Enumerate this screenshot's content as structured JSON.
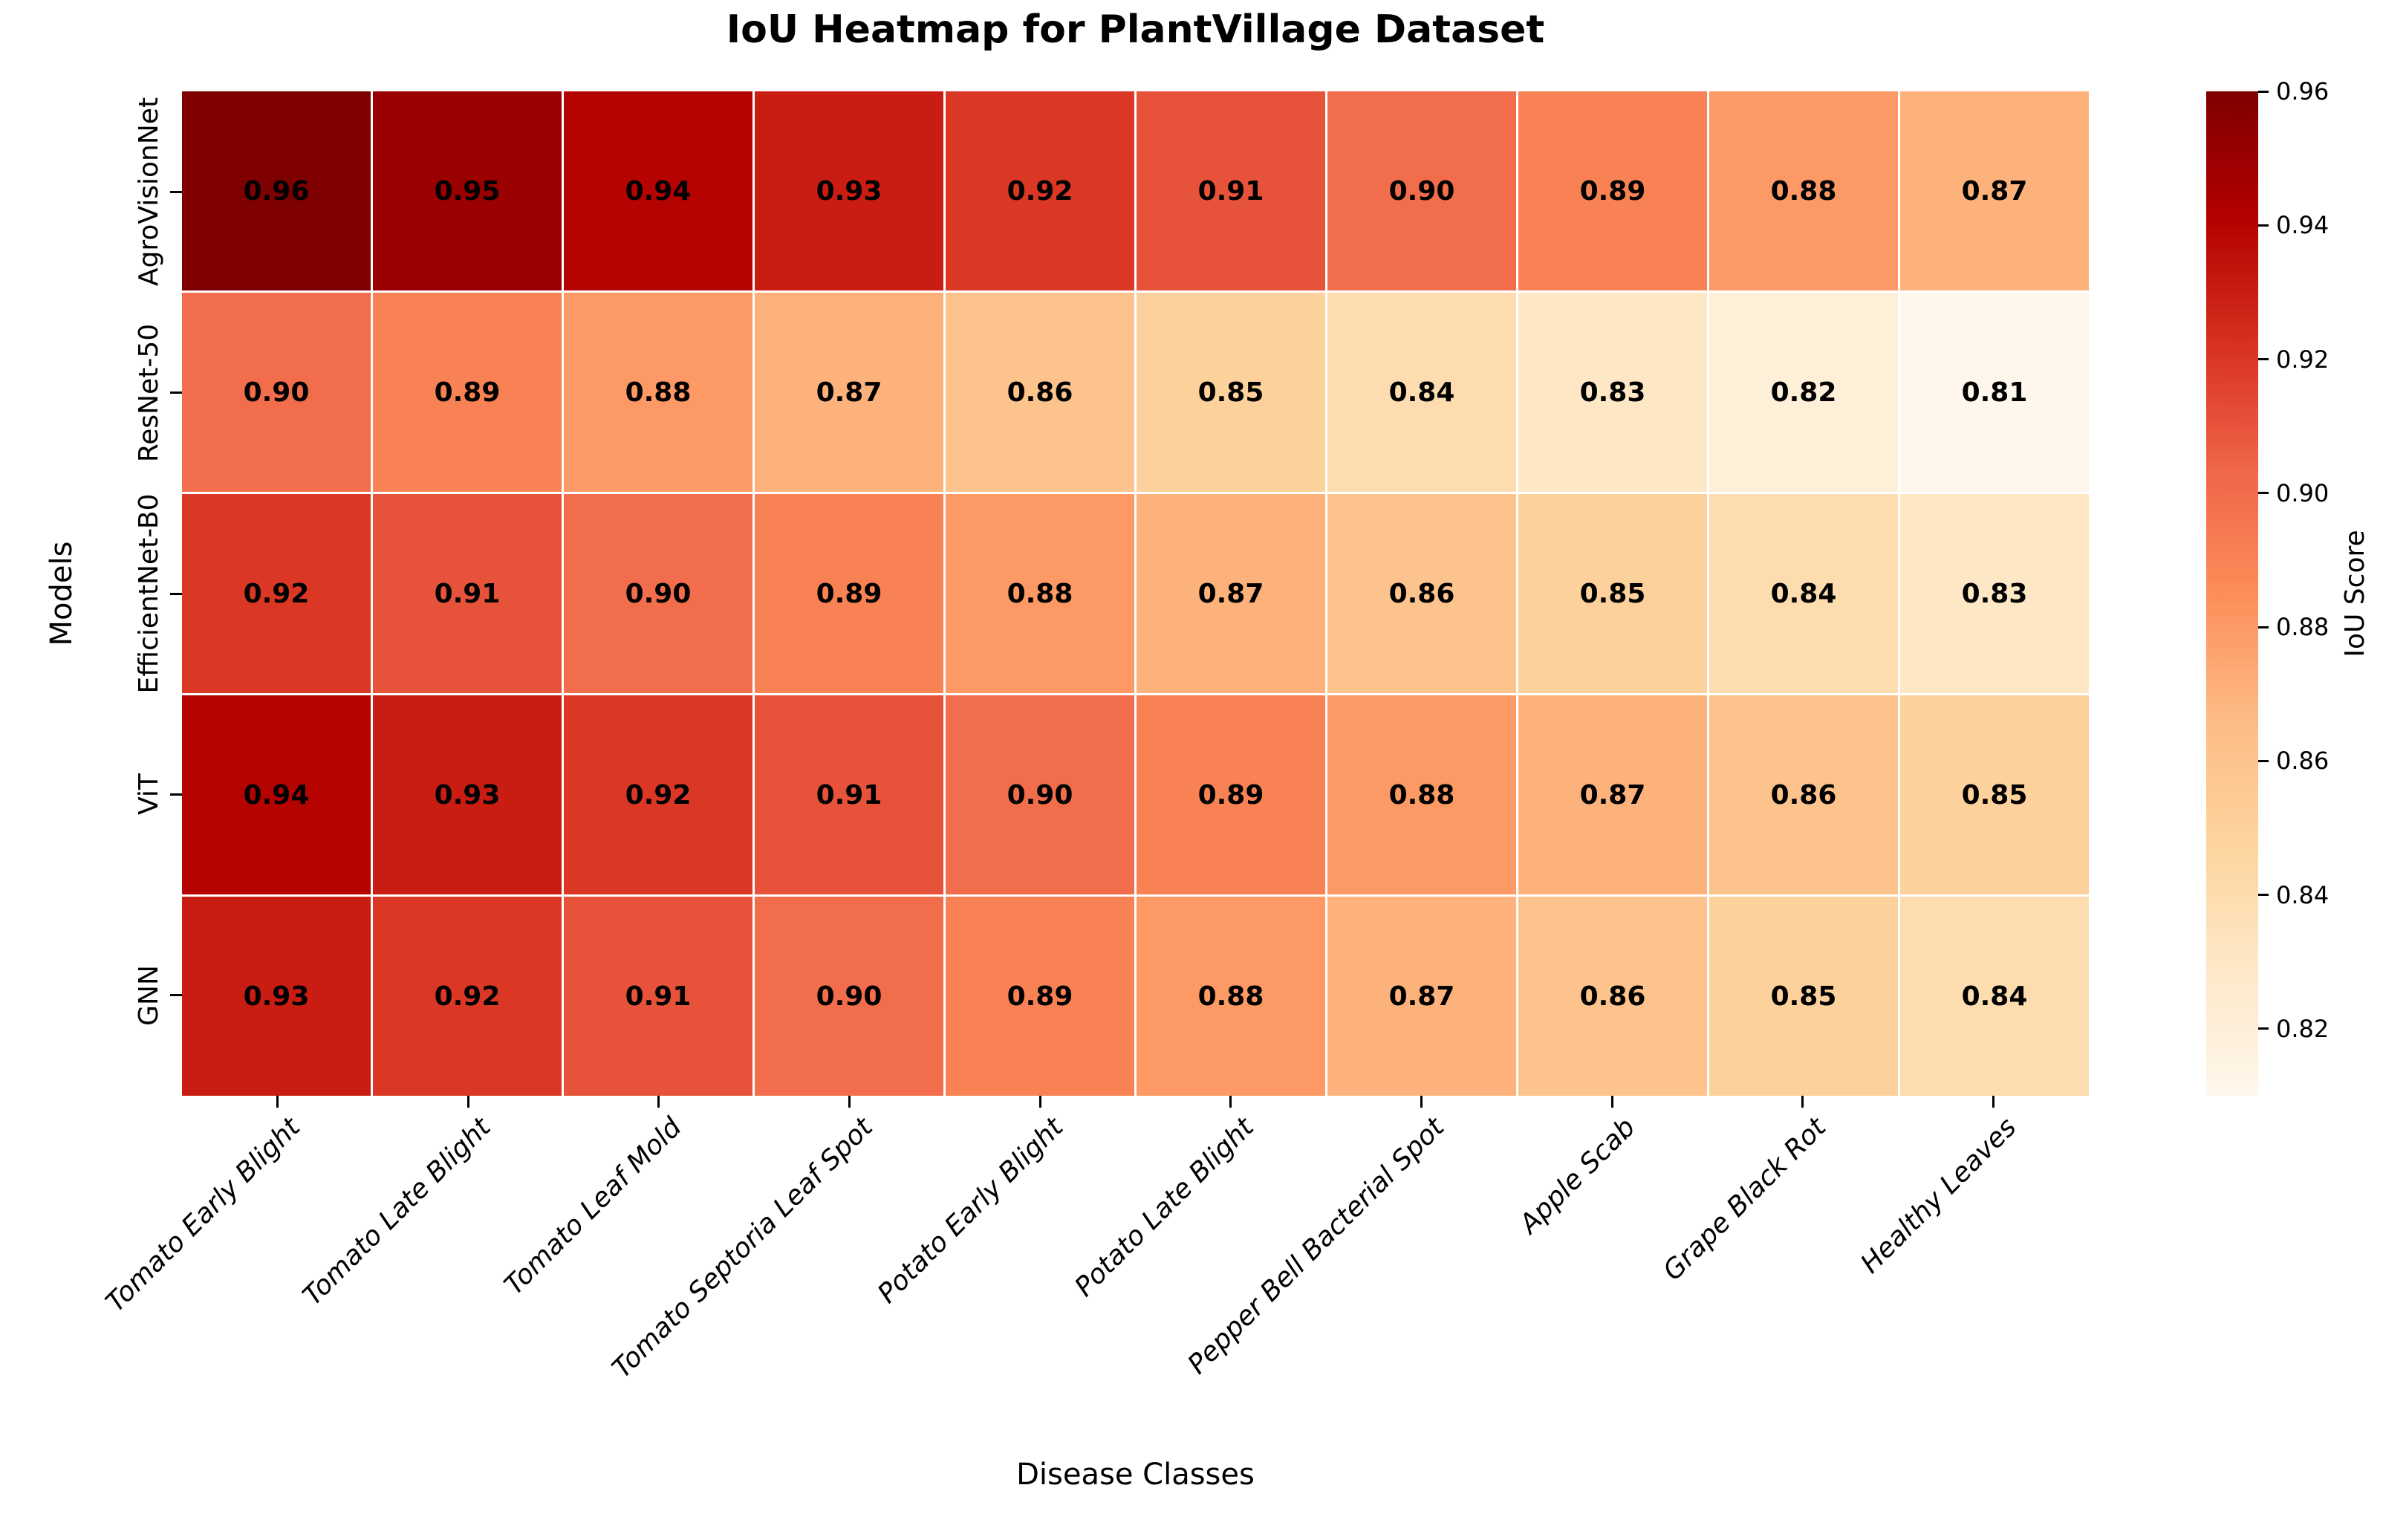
{
  "chart_data": {
    "type": "heatmap",
    "title": "IoU Heatmap for PlantVillage Dataset",
    "xlabel": "Disease Classes",
    "ylabel": "Models",
    "x_categories": [
      "Tomato Early Blight",
      "Tomato Late Blight",
      "Tomato Leaf Mold",
      "Tomato Septoria Leaf Spot",
      "Potato Early Blight",
      "Potato Late Blight",
      "Pepper Bell Bacterial Spot",
      "Apple Scab",
      "Grape Black Rot",
      "Healthy Leaves"
    ],
    "series": [
      {
        "name": "AgroVisionNet",
        "values": [
          0.96,
          0.95,
          0.94,
          0.93,
          0.92,
          0.91,
          0.9,
          0.89,
          0.88,
          0.87
        ]
      },
      {
        "name": "ResNet-50",
        "values": [
          0.9,
          0.89,
          0.88,
          0.87,
          0.86,
          0.85,
          0.84,
          0.83,
          0.82,
          0.81
        ]
      },
      {
        "name": "EfficientNet-B0",
        "values": [
          0.92,
          0.91,
          0.9,
          0.89,
          0.88,
          0.87,
          0.86,
          0.85,
          0.84,
          0.83
        ]
      },
      {
        "name": "ViT",
        "values": [
          0.94,
          0.93,
          0.92,
          0.91,
          0.9,
          0.89,
          0.88,
          0.87,
          0.86,
          0.85
        ]
      },
      {
        "name": "GNN",
        "values": [
          0.93,
          0.92,
          0.91,
          0.9,
          0.89,
          0.88,
          0.87,
          0.86,
          0.85,
          0.84
        ]
      }
    ],
    "annotation_text_color": "#000000",
    "grid_line_color": "#ffffff",
    "colorbar": {
      "label": "IoU Score",
      "vmin": 0.81,
      "vmax": 0.96,
      "ticks": [
        0.96,
        0.94,
        0.92,
        0.9,
        0.88,
        0.86,
        0.84,
        0.82
      ],
      "colormap": "OrRd",
      "colormap_stops": [
        "#fff7ec",
        "#fee8c8",
        "#fdd49e",
        "#fdbb84",
        "#fc8d59",
        "#ef6548",
        "#d7301f",
        "#b30000",
        "#7f0000"
      ]
    }
  }
}
